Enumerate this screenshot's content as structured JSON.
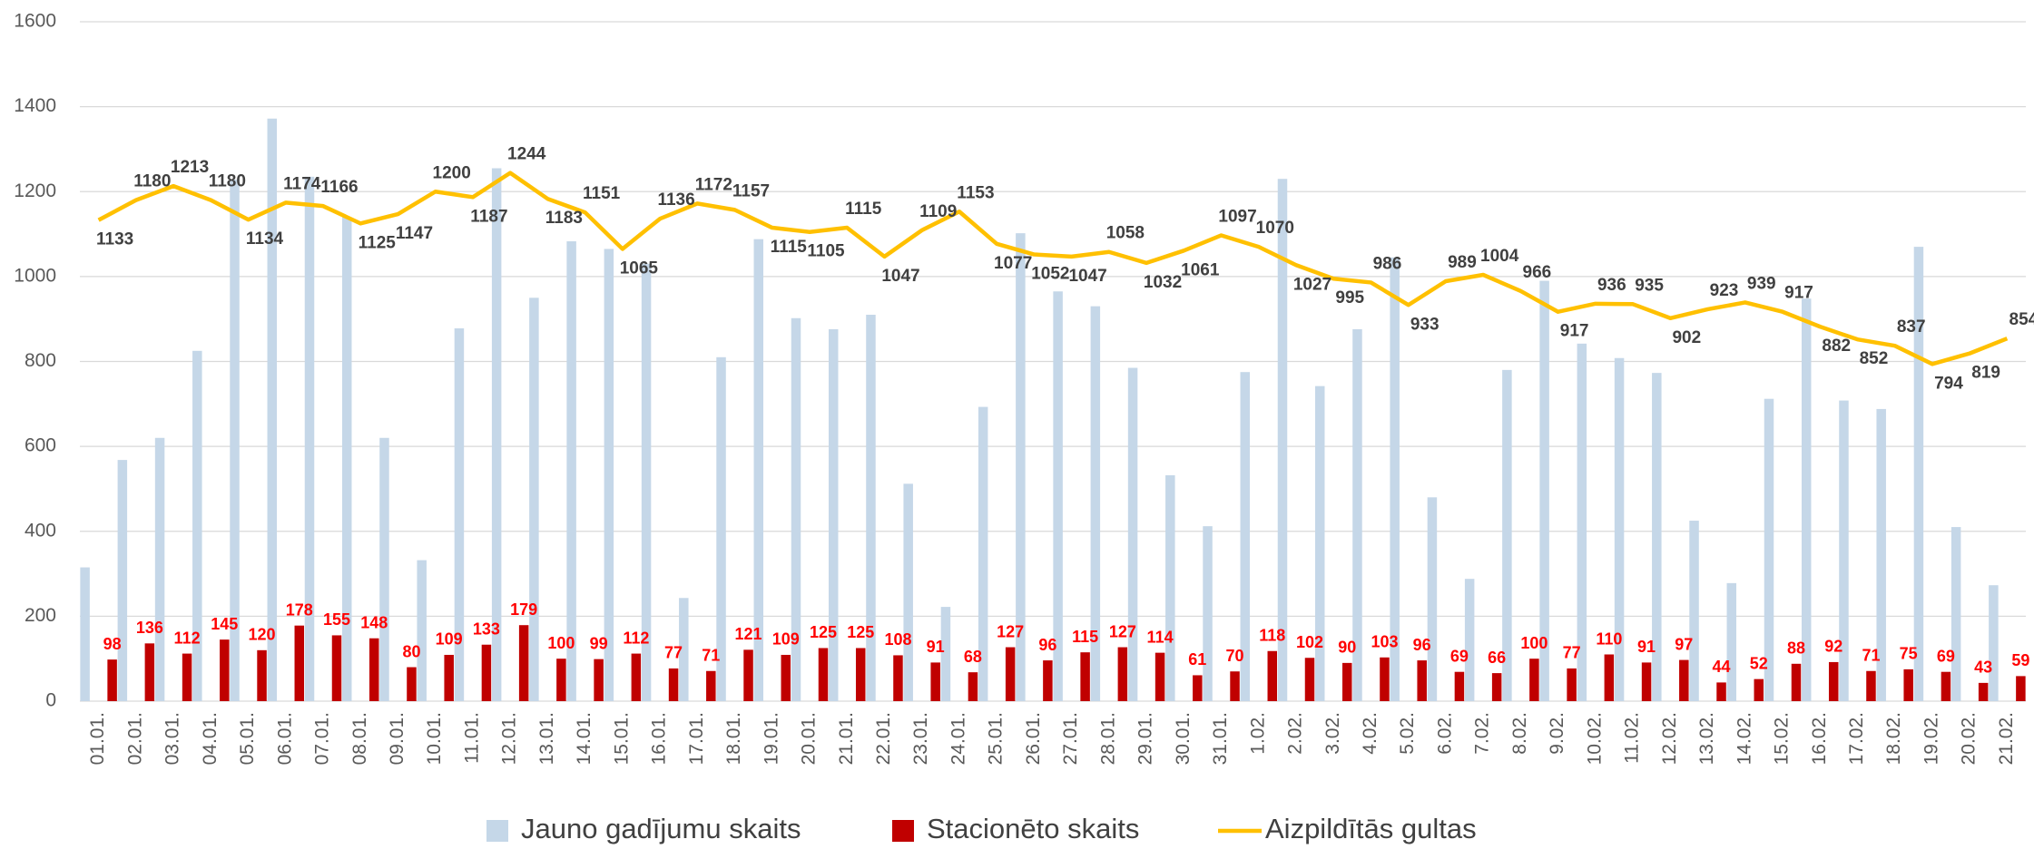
{
  "chart_data": {
    "type": "bar",
    "categories": [
      "01.01.",
      "02.01.",
      "03.01.",
      "04.01.",
      "05.01.",
      "06.01.",
      "07.01.",
      "08.01.",
      "09.01.",
      "10.01.",
      "11.01.",
      "12.01.",
      "13.01.",
      "14.01.",
      "15.01.",
      "16.01.",
      "17.01.",
      "18.01.",
      "19.01.",
      "20.01.",
      "21.01.",
      "22.01.",
      "23.01.",
      "24.01.",
      "25.01.",
      "26.01.",
      "27.01.",
      "28.01.",
      "29.01.",
      "30.01.",
      "31.01.",
      "1.02.",
      "2.02.",
      "3.02.",
      "4.02.",
      "5.02.",
      "6.02.",
      "7.02.",
      "8.02.",
      "9.02.",
      "10.02.",
      "11.02.",
      "12.02.",
      "13.02.",
      "14.02.",
      "15.02.",
      "16.02.",
      "17.02.",
      "18.02.",
      "19.02.",
      "20.02.",
      "21.02."
    ],
    "series": [
      {
        "name": "Jauno gadījumu skaits",
        "type": "bar",
        "color": "#c5d7e8",
        "values": [
          315,
          568,
          620,
          825,
          1228,
          1372,
          1235,
          1140,
          620,
          332,
          878,
          1255,
          950,
          1083,
          1065,
          1030,
          243,
          810,
          1088,
          902,
          876,
          910,
          512,
          222,
          693,
          1102,
          965,
          930,
          785,
          532,
          412,
          775,
          1230,
          742,
          876,
          1045,
          480,
          288,
          780,
          990,
          842,
          808,
          773,
          425,
          278,
          712,
          948,
          708,
          688,
          1070,
          410,
          273
        ]
      },
      {
        "name": "Stacionēto skaits",
        "type": "bar",
        "color": "#c00000",
        "labels": true,
        "values": [
          98,
          136,
          112,
          145,
          120,
          178,
          155,
          148,
          80,
          109,
          133,
          179,
          100,
          99,
          112,
          77,
          71,
          121,
          109,
          125,
          125,
          108,
          91,
          68,
          127,
          96,
          115,
          127,
          114,
          61,
          70,
          118,
          102,
          90,
          103,
          96,
          69,
          66,
          100,
          77,
          110,
          91,
          97,
          44,
          52,
          88,
          92,
          71,
          75,
          69,
          43,
          59
        ]
      },
      {
        "name": "Aizpildītās gultas",
        "type": "line",
        "color": "#ffc000",
        "labels": true,
        "values": [
          1133,
          1180,
          1213,
          1180,
          1134,
          1174,
          1166,
          1125,
          1147,
          1200,
          1187,
          1244,
          1183,
          1151,
          1065,
          1136,
          1172,
          1157,
          1115,
          1105,
          1115,
          1047,
          1109,
          1153,
          1077,
          1052,
          1047,
          1058,
          1032,
          1061,
          1097,
          1070,
          1027,
          995,
          986,
          933,
          989,
          1004,
          966,
          917,
          936,
          935,
          902,
          923,
          939,
          917,
          882,
          852,
          837,
          794,
          819,
          854
        ]
      }
    ],
    "ylim": [
      0,
      1600
    ],
    "yticks": [
      0,
      200,
      400,
      600,
      800,
      1000,
      1200,
      1400,
      1600
    ],
    "grid": true,
    "legend": "bottom"
  }
}
